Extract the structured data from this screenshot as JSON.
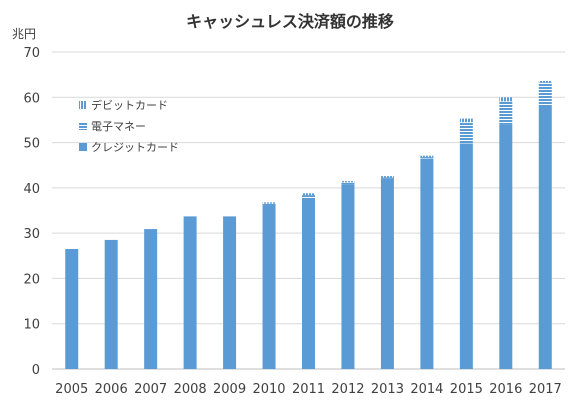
{
  "chart_data": {
    "type": "bar",
    "stacked": true,
    "title": "キャッシュレス決済額の推移",
    "ylabel": "兆円",
    "xlabel": "",
    "ylim": [
      0,
      70
    ],
    "yticks": [
      0,
      10,
      20,
      30,
      40,
      50,
      60,
      70
    ],
    "grid": true,
    "legend_position": "top-left",
    "categories": [
      "2005",
      "2006",
      "2007",
      "2008",
      "2009",
      "2010",
      "2011",
      "2012",
      "2013",
      "2014",
      "2015",
      "2016",
      "2017"
    ],
    "series": [
      {
        "name": "クレジットカード",
        "color": "#5b9bd5",
        "pattern": "solid",
        "values": [
          26.5,
          28.5,
          30.9,
          33.7,
          33.7,
          36.0,
          37.8,
          40.7,
          42.0,
          46.5,
          49.8,
          53.9,
          58.3
        ]
      },
      {
        "name": "電子マネー",
        "color": "#5b9bd5",
        "pattern": "horizontal-stripes",
        "values": [
          0,
          0,
          0,
          0,
          0,
          0.5,
          0.6,
          0.5,
          0.3,
          0.3,
          4.7,
          5.2,
          5.0
        ]
      },
      {
        "name": "デビットカード",
        "color": "#5b9bd5",
        "pattern": "vertical-stripes",
        "values": [
          0,
          0,
          0,
          0,
          0,
          0.3,
          0.4,
          0.3,
          0.3,
          0.3,
          0.8,
          0.9,
          0.3
        ]
      }
    ]
  }
}
